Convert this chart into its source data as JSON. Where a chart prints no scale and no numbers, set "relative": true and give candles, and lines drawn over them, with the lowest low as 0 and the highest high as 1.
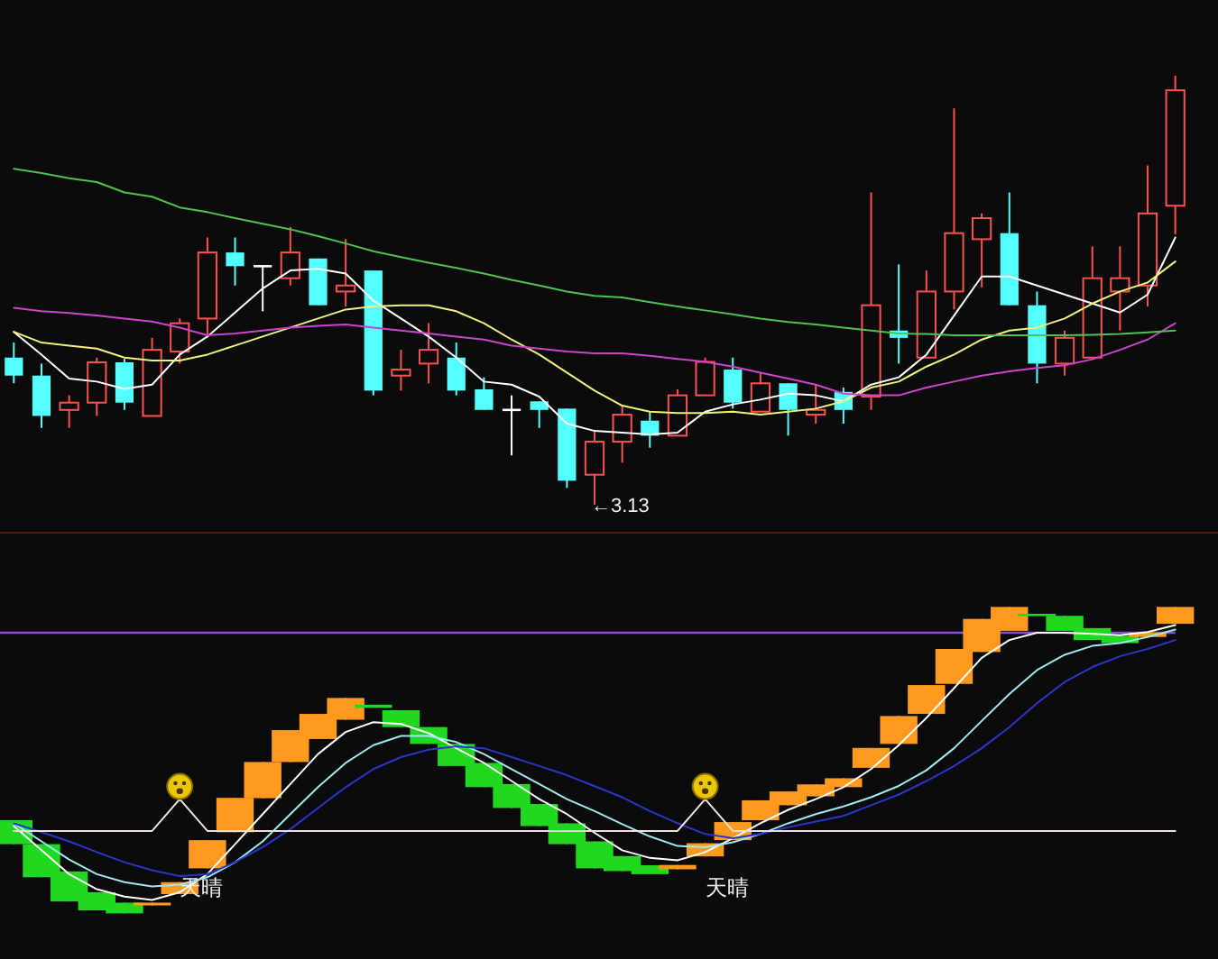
{
  "chart_data": [
    {
      "type": "candlestick",
      "relative": true,
      "categories": [
        null,
        null,
        null,
        null,
        null,
        null,
        null,
        null,
        null,
        null,
        null,
        null,
        null,
        null,
        null,
        null,
        null,
        null,
        null,
        null,
        null,
        null,
        null,
        null,
        null,
        null,
        null,
        null,
        null,
        null,
        null,
        null,
        null,
        null,
        null,
        null,
        null,
        null,
        null,
        null,
        null,
        null,
        null
      ],
      "ohlc": [
        [
          0.343,
          0.378,
          0.283,
          0.301
        ],
        [
          0.301,
          0.329,
          0.179,
          0.207
        ],
        [
          0.221,
          0.255,
          0.179,
          0.238
        ],
        [
          0.238,
          0.343,
          0.207,
          0.332
        ],
        [
          0.332,
          0.34,
          0.221,
          0.238
        ],
        [
          0.207,
          0.389,
          0.207,
          0.361
        ],
        [
          0.357,
          0.434,
          0.329,
          0.423
        ],
        [
          0.434,
          0.623,
          0.392,
          0.588
        ],
        [
          0.588,
          0.623,
          0.511,
          0.556
        ],
        [
          0.556,
          0.556,
          0.451,
          0.556
        ],
        [
          0.528,
          0.647,
          0.511,
          0.588
        ],
        [
          0.574,
          0.574,
          0.465,
          0.465
        ],
        [
          0.497,
          0.619,
          0.462,
          0.511
        ],
        [
          0.546,
          0.546,
          0.255,
          0.266
        ],
        [
          0.301,
          0.361,
          0.266,
          0.315
        ],
        [
          0.329,
          0.423,
          0.283,
          0.361
        ],
        [
          0.343,
          0.378,
          0.255,
          0.266
        ],
        [
          0.269,
          0.297,
          0.221,
          0.221
        ],
        [
          0.221,
          0.255,
          0.115,
          0.221
        ],
        [
          0.241,
          0.241,
          0.179,
          0.221
        ],
        [
          0.224,
          0.224,
          0.039,
          0.056
        ],
        [
          0.07,
          0.175,
          0,
          0.147
        ],
        [
          0.147,
          0.231,
          0.098,
          0.21
        ],
        [
          0.196,
          0.217,
          0.133,
          0.161
        ],
        [
          0.161,
          0.269,
          0.161,
          0.255
        ],
        [
          0.255,
          0.343,
          0.255,
          0.333
        ],
        [
          0.315,
          0.343,
          0.224,
          0.238
        ],
        [
          0.217,
          0.308,
          0.217,
          0.283
        ],
        [
          0.283,
          0.283,
          0.161,
          0.221
        ],
        [
          0.21,
          0.28,
          0.189,
          0.221
        ],
        [
          0.263,
          0.273,
          0.189,
          0.221
        ],
        [
          0.252,
          0.728,
          0.221,
          0.465
        ],
        [
          0.406,
          0.56,
          0.329,
          0.389
        ],
        [
          0.343,
          0.546,
          0.343,
          0.497
        ],
        [
          0.497,
          0.924,
          0.455,
          0.633
        ],
        [
          0.619,
          0.679,
          0.507,
          0.668
        ],
        [
          0.633,
          0.728,
          0.465,
          0.465
        ],
        [
          0.465,
          0.497,
          0.283,
          0.329
        ],
        [
          0.329,
          0.406,
          0.301,
          0.389
        ],
        [
          0.343,
          0.602,
          0.343,
          0.528
        ],
        [
          0.497,
          0.602,
          0.406,
          0.528
        ],
        [
          0.511,
          0.791,
          0.462,
          0.679
        ],
        [
          0.697,
          1.0,
          0.63,
          0.966
        ]
      ],
      "colors": [
        "#54ffff",
        "#54ffff",
        "#ff5050",
        "#ff5050",
        "#54ffff",
        "#ff5050",
        "#ff5050",
        "#ff5050",
        "#54ffff",
        "#ffffff",
        "#ff5050",
        "#54ffff",
        "#ff5050",
        "#54ffff",
        "#ff5050",
        "#ff5050",
        "#54ffff",
        "#54ffff",
        "#ffffff",
        "#54ffff",
        "#54ffff",
        "#ff5050",
        "#ff5050",
        "#54ffff",
        "#ff5050",
        "#ff5050",
        "#54ffff",
        "#ff5050",
        "#54ffff",
        "#ff5050",
        "#54ffff",
        "#ff5050",
        "#54ffff",
        "#ff5050",
        "#ff5050",
        "#ff5050",
        "#54ffff",
        "#54ffff",
        "#ff5050",
        "#ff5050",
        "#ff5050",
        "#ff5050",
        "#ff5050"
      ],
      "series": [
        {
          "type": "line",
          "color": "#ffffff",
          "values": [
            0.403,
            0.35,
            0.294,
            0.287,
            0.27,
            0.28,
            0.35,
            0.392,
            0.448,
            0.504,
            0.546,
            0.55,
            0.539,
            0.476,
            0.434,
            0.392,
            0.343,
            0.287,
            0.28,
            0.252,
            0.189,
            0.172,
            0.168,
            0.164,
            0.168,
            0.217,
            0.234,
            0.245,
            0.259,
            0.255,
            0.241,
            0.28,
            0.297,
            0.35,
            0.441,
            0.532,
            0.532,
            0.511,
            0.49,
            0.469,
            0.448,
            0.49,
            0.623
          ]
        },
        {
          "type": "line",
          "color": "#f2f27a",
          "values": [
            0.403,
            0.378,
            0.371,
            0.364,
            0.343,
            0.336,
            0.336,
            0.35,
            0.371,
            0.392,
            0.413,
            0.434,
            0.455,
            0.462,
            0.465,
            0.465,
            0.451,
            0.423,
            0.385,
            0.35,
            0.308,
            0.266,
            0.231,
            0.217,
            0.214,
            0.214,
            0.217,
            0.21,
            0.217,
            0.224,
            0.241,
            0.273,
            0.287,
            0.322,
            0.35,
            0.385,
            0.406,
            0.413,
            0.434,
            0.469,
            0.497,
            0.518,
            0.567
          ]
        },
        {
          "type": "line",
          "color": "#cc44cc",
          "values": [
            0.459,
            0.451,
            0.447,
            0.441,
            0.434,
            0.427,
            0.413,
            0.395,
            0.399,
            0.406,
            0.413,
            0.417,
            0.42,
            0.413,
            0.406,
            0.399,
            0.392,
            0.385,
            0.371,
            0.364,
            0.357,
            0.353,
            0.353,
            0.347,
            0.34,
            0.333,
            0.322,
            0.308,
            0.294,
            0.28,
            0.259,
            0.255,
            0.255,
            0.273,
            0.287,
            0.301,
            0.311,
            0.319,
            0.325,
            0.339,
            0.361,
            0.385,
            0.423
          ]
        },
        {
          "type": "line",
          "color": "#4ec24e",
          "values": [
            0.783,
            0.773,
            0.761,
            0.752,
            0.728,
            0.718,
            0.693,
            0.682,
            0.668,
            0.655,
            0.642,
            0.626,
            0.609,
            0.591,
            0.577,
            0.564,
            0.552,
            0.539,
            0.524,
            0.511,
            0.497,
            0.487,
            0.483,
            0.472,
            0.462,
            0.453,
            0.444,
            0.434,
            0.426,
            0.42,
            0.413,
            0.406,
            0.399,
            0.398,
            0.395,
            0.395,
            0.395,
            0.395,
            0.395,
            0.396,
            0.398,
            0.402,
            0.406
          ]
        }
      ],
      "annotations": [
        "←3.13"
      ]
    },
    {
      "type": "candlestick",
      "relative": true,
      "categories": [
        null,
        null,
        null,
        null,
        null,
        null,
        null,
        null,
        null,
        null,
        null,
        null,
        null,
        null,
        null,
        null,
        null,
        null,
        null,
        null,
        null,
        null,
        null,
        null,
        null,
        null,
        null,
        null,
        null,
        null,
        null,
        null,
        null,
        null,
        null,
        null,
        null,
        null,
        null,
        null,
        null,
        null,
        null
      ],
      "ohlc": [
        [
          0.304,
          0.304,
          0.226,
          0.226
        ],
        [
          0.226,
          0.226,
          0.118,
          0.118
        ],
        [
          0.137,
          0.137,
          0.039,
          0.039
        ],
        [
          0.069,
          0.069,
          0.01,
          0.01
        ],
        [
          0.035,
          0.035,
          0,
          0
        ],
        [
          0.026,
          0.035,
          0.026,
          0.035
        ],
        [
          0.063,
          0.102,
          0.063,
          0.102
        ],
        [
          0.147,
          0.239,
          0.147,
          0.239
        ],
        [
          0.265,
          0.377,
          0.265,
          0.377
        ],
        [
          0.376,
          0.494,
          0.376,
          0.494
        ],
        [
          0.494,
          0.598,
          0.494,
          0.598
        ],
        [
          0.569,
          0.651,
          0.569,
          0.651
        ],
        [
          0.632,
          0.703,
          0.632,
          0.703
        ],
        [
          0.681,
          0.681,
          0.671,
          0.671
        ],
        [
          0.663,
          0.663,
          0.608,
          0.608
        ],
        [
          0.608,
          0.608,
          0.553,
          0.553
        ],
        [
          0.553,
          0.553,
          0.481,
          0.481
        ],
        [
          0.491,
          0.491,
          0.412,
          0.412
        ],
        [
          0.422,
          0.422,
          0.344,
          0.344
        ],
        [
          0.357,
          0.357,
          0.285,
          0.285
        ],
        [
          0.294,
          0.294,
          0.226,
          0.226
        ],
        [
          0.235,
          0.235,
          0.147,
          0.147
        ],
        [
          0.187,
          0.187,
          0.138,
          0.138
        ],
        [
          0.157,
          0.157,
          0.128,
          0.128
        ],
        [
          0.144,
          0.158,
          0.144,
          0.158
        ],
        [
          0.186,
          0.229,
          0.186,
          0.229
        ],
        [
          0.239,
          0.298,
          0.239,
          0.298
        ],
        [
          0.304,
          0.369,
          0.304,
          0.369
        ],
        [
          0.353,
          0.398,
          0.353,
          0.398
        ],
        [
          0.382,
          0.421,
          0.382,
          0.421
        ],
        [
          0.412,
          0.441,
          0.412,
          0.441
        ],
        [
          0.475,
          0.54,
          0.475,
          0.54
        ],
        [
          0.553,
          0.644,
          0.553,
          0.644
        ],
        [
          0.651,
          0.745,
          0.651,
          0.745
        ],
        [
          0.749,
          0.863,
          0.749,
          0.863
        ],
        [
          0.853,
          0.961,
          0.853,
          0.961
        ],
        [
          0.922,
          1.0,
          0.922,
          1.0
        ],
        [
          0.977,
          0.977,
          0.971,
          0.971
        ],
        [
          0.971,
          0.971,
          0.922,
          0.922
        ],
        [
          0.931,
          0.931,
          0.892,
          0.892
        ],
        [
          0.906,
          0.906,
          0.882,
          0.882
        ],
        [
          0.902,
          0.916,
          0.902,
          0.916
        ],
        [
          0.945,
          1.0,
          0.945,
          1.0
        ]
      ],
      "colors": [
        "#1fd81f",
        "#1fd81f",
        "#1fd81f",
        "#1fd81f",
        "#1fd81f",
        "#ff9a1f",
        "#ff9a1f",
        "#ff9a1f",
        "#ff9a1f",
        "#ff9a1f",
        "#ff9a1f",
        "#ff9a1f",
        "#ff9a1f",
        "#1fd81f",
        "#1fd81f",
        "#1fd81f",
        "#1fd81f",
        "#1fd81f",
        "#1fd81f",
        "#1fd81f",
        "#1fd81f",
        "#1fd81f",
        "#1fd81f",
        "#1fd81f",
        "#ff9a1f",
        "#ff9a1f",
        "#ff9a1f",
        "#ff9a1f",
        "#ff9a1f",
        "#ff9a1f",
        "#ff9a1f",
        "#ff9a1f",
        "#ff9a1f",
        "#ff9a1f",
        "#ff9a1f",
        "#ff9a1f",
        "#ff9a1f",
        "#1fd81f",
        "#1fd81f",
        "#1fd81f",
        "#1fd81f",
        "#ff9a1f",
        "#ff9a1f"
      ],
      "series": [
        {
          "type": "line",
          "color": "#ffffff",
          "values": [
            0.285,
            0.206,
            0.128,
            0.079,
            0.055,
            0.044,
            0.069,
            0.128,
            0.226,
            0.324,
            0.422,
            0.52,
            0.592,
            0.624,
            0.618,
            0.588,
            0.539,
            0.491,
            0.432,
            0.373,
            0.324,
            0.263,
            0.206,
            0.181,
            0.173,
            0.2,
            0.245,
            0.294,
            0.338,
            0.373,
            0.412,
            0.471,
            0.549,
            0.638,
            0.735,
            0.834,
            0.892,
            0.916,
            0.916,
            0.912,
            0.908,
            0.918,
            0.941
          ]
        },
        {
          "type": "line",
          "color": "#9ee8ee",
          "values": [
            0.294,
            0.235,
            0.176,
            0.128,
            0.102,
            0.088,
            0.094,
            0.118,
            0.167,
            0.235,
            0.324,
            0.412,
            0.491,
            0.549,
            0.579,
            0.579,
            0.559,
            0.52,
            0.471,
            0.422,
            0.373,
            0.334,
            0.291,
            0.251,
            0.22,
            0.216,
            0.232,
            0.259,
            0.294,
            0.324,
            0.349,
            0.379,
            0.416,
            0.467,
            0.539,
            0.628,
            0.716,
            0.794,
            0.844,
            0.873,
            0.882,
            0.902,
            0.926
          ]
        },
        {
          "type": "line",
          "color": "#2a36c8",
          "values": [
            0.294,
            0.265,
            0.235,
            0.2,
            0.167,
            0.141,
            0.122,
            0.128,
            0.167,
            0.216,
            0.275,
            0.344,
            0.412,
            0.471,
            0.51,
            0.534,
            0.545,
            0.539,
            0.51,
            0.481,
            0.451,
            0.415,
            0.379,
            0.334,
            0.294,
            0.259,
            0.245,
            0.259,
            0.281,
            0.3,
            0.318,
            0.353,
            0.388,
            0.432,
            0.481,
            0.539,
            0.608,
            0.686,
            0.755,
            0.804,
            0.839,
            0.863,
            0.892
          ]
        },
        {
          "type": "line",
          "color": "#f0e0e0",
          "values": [
            0.269,
            0.269,
            0.269,
            0.269,
            0.269,
            0.269,
            0.373,
            0.269,
            0.269,
            0.269,
            0.269,
            0.269,
            0.269,
            0.269,
            0.269,
            0.269,
            0.269,
            0.269,
            0.269,
            0.269,
            0.269,
            0.269,
            0.269,
            0.269,
            0.269,
            0.373,
            0.269,
            0.269,
            0.269,
            0.269,
            0.269,
            0.269,
            0.269,
            0.269,
            0.269,
            0.269,
            0.269,
            0.269,
            0.269,
            0.269,
            0.269,
            0.269,
            0.269
          ]
        }
      ],
      "ref_lines": [
        {
          "axis": "y",
          "value": 0.916,
          "color": "#8a4fd0"
        }
      ],
      "annotations": [
        "天晴",
        "天晴"
      ]
    }
  ]
}
